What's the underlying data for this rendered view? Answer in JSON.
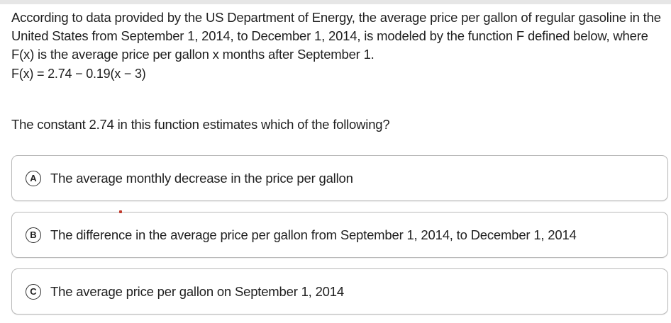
{
  "question": {
    "intro": "According to data provided by the US Department of Energy, the average price per gallon of regular gasoline in the United States from September 1, 2014, to December 1, 2014, is modeled by the function F defined below, where F(x) is the average price per gallon x months after September 1.",
    "function": "F(x) = 2.74 − 0.19(x − 3)",
    "prompt": "The constant 2.74 in this function estimates which of the following?"
  },
  "choices": [
    {
      "letter": "A",
      "text": "The average monthly decrease in the price per gallon"
    },
    {
      "letter": "B",
      "text": "The difference in the average price per gallon from September 1, 2014, to December 1, 2014"
    },
    {
      "letter": "C",
      "text": "The average price per gallon on September 1, 2014"
    }
  ],
  "colors": {
    "border": "#b9b9b9",
    "text": "#1f1f1f",
    "pointer": "#c0392b"
  }
}
